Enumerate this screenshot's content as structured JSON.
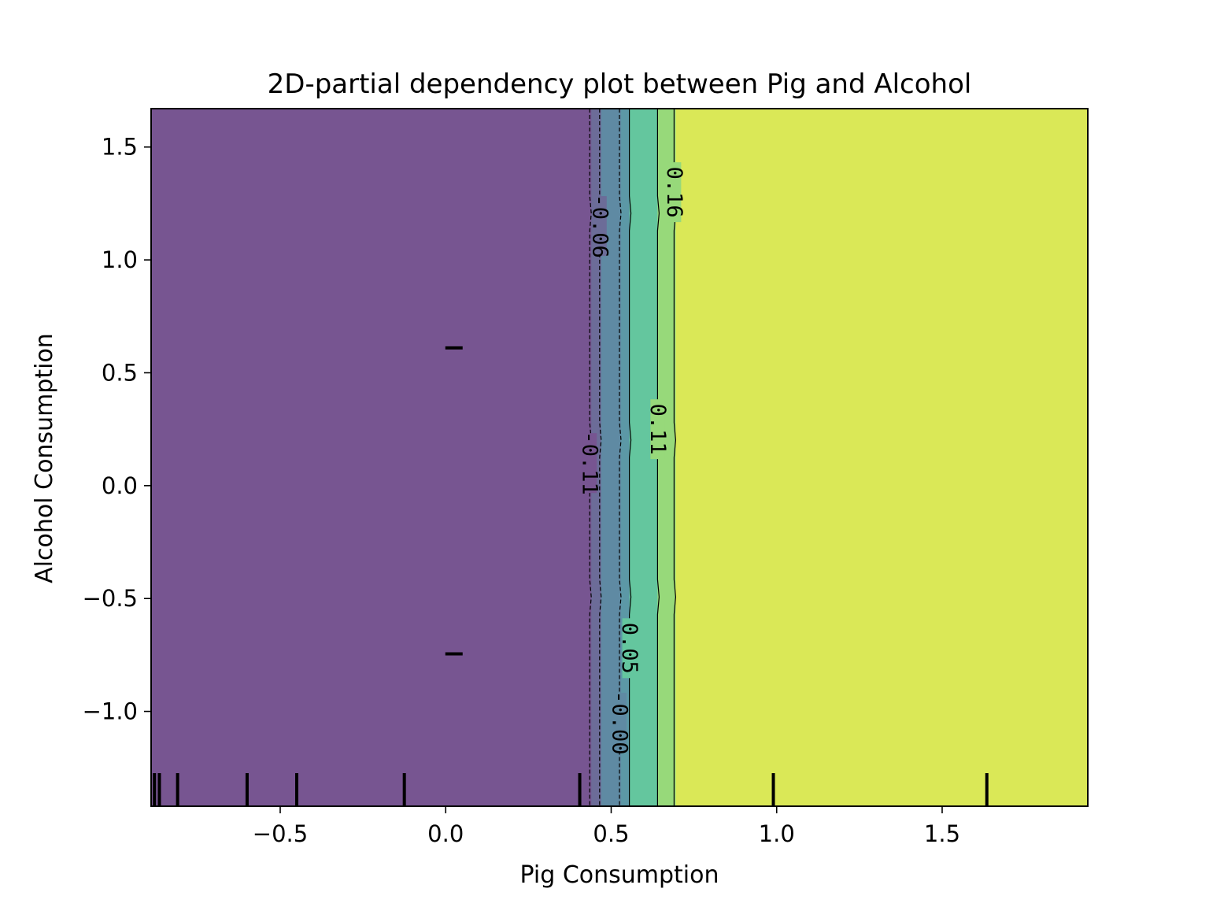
{
  "chart_data": {
    "type": "contour",
    "title": "2D-partial dependency plot between Pig and Alcohol",
    "xlabel": "Pig Consumption",
    "ylabel": "Alcohol Consumption",
    "xlim": [
      -0.89,
      1.94
    ],
    "ylim": [
      -1.42,
      1.67
    ],
    "xticks": [
      {
        "value": -0.5,
        "label": "−0.5"
      },
      {
        "value": 0.0,
        "label": "0.0"
      },
      {
        "value": 0.5,
        "label": "0.5"
      },
      {
        "value": 1.0,
        "label": "1.0"
      },
      {
        "value": 1.5,
        "label": "1.5"
      }
    ],
    "yticks": [
      {
        "value": 1.5,
        "label": "1.5"
      },
      {
        "value": 1.0,
        "label": "1.0"
      },
      {
        "value": 0.5,
        "label": "0.5"
      },
      {
        "value": 0.0,
        "label": "0.0"
      },
      {
        "value": -0.5,
        "label": "−0.5"
      },
      {
        "value": -1.0,
        "label": "−1.0"
      }
    ],
    "fill_bands": [
      {
        "x_from": -0.89,
        "x_to": 0.44,
        "color": "#775591"
      },
      {
        "x_from": 0.44,
        "x_to": 0.47,
        "color": "#6c6c98"
      },
      {
        "x_from": 0.47,
        "x_to": 0.53,
        "color": "#5f8aa3"
      },
      {
        "x_from": 0.53,
        "x_to": 0.555,
        "color": "#5c98a6"
      },
      {
        "x_from": 0.555,
        "x_to": 0.64,
        "color": "#64c69e"
      },
      {
        "x_from": 0.64,
        "x_to": 0.695,
        "color": "#97d97a"
      },
      {
        "x_from": 0.695,
        "x_to": 1.94,
        "color": "#dae857"
      }
    ],
    "contour_levels": [
      {
        "level": "-0.11",
        "x": 0.435,
        "dashed": true,
        "label_y": 0.1
      },
      {
        "level": "-0.06",
        "x": 0.465,
        "dashed": true,
        "label_y": 1.15
      },
      {
        "level": "-0.00",
        "x": 0.525,
        "dashed": true,
        "label_y": -1.05
      },
      {
        "level": "0.05",
        "x": 0.555,
        "dashed": false,
        "label_y": -0.72
      },
      {
        "level": "0.11",
        "x": 0.64,
        "dashed": false,
        "label_y": 0.25
      },
      {
        "level": "0.16",
        "x": 0.69,
        "dashed": false,
        "label_y": 1.3
      }
    ],
    "rug_x": [
      -0.88,
      -0.865,
      -0.81,
      -0.6,
      -0.45,
      -0.125,
      0.405,
      0.99,
      1.635
    ],
    "rug_y": [
      0.61,
      -0.745
    ],
    "rug_y_at_x": 0.025
  }
}
